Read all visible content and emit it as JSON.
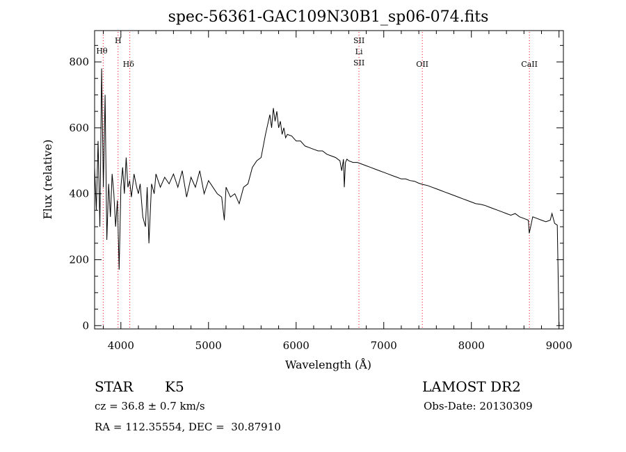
{
  "chart_data": {
    "type": "line",
    "title": "spec-56361-GAC109N30B1_sp06-074.fits",
    "xlabel": "Wavelength (Å)",
    "ylabel": "Flux (relative)",
    "xlim": [
      3700,
      9050
    ],
    "ylim": [
      -10,
      895
    ],
    "xticks": [
      4000,
      5000,
      6000,
      7000,
      8000,
      9000
    ],
    "yticks": [
      0,
      200,
      400,
      600,
      800
    ],
    "grid": false,
    "line_color": "#000000",
    "marker_color": "#ff0000",
    "lines": [
      {
        "labels": [
          "Hθ"
        ],
        "x": 3798,
        "color": "#ff0000"
      },
      {
        "labels": [
          "H"
        ],
        "x": 3968,
        "color": "#ff0000"
      },
      {
        "labels": [
          "Hδ"
        ],
        "x": 4102,
        "color": "#ff0000"
      },
      {
        "labels": [
          "SII",
          "Li",
          "SII"
        ],
        "x": 6717,
        "color": "#ff0000"
      },
      {
        "labels": [
          "OII"
        ],
        "x": 7440,
        "color": "#ff0000"
      },
      {
        "labels": [
          "CaII"
        ],
        "x": 8662,
        "color": "#ff0000"
      }
    ],
    "series": [
      {
        "x": [
          3700,
          3720,
          3740,
          3760,
          3780,
          3800,
          3820,
          3840,
          3860,
          3880,
          3900,
          3920,
          3940,
          3960,
          3980,
          4000,
          4020,
          4040,
          4060,
          4080,
          4100,
          4120,
          4150,
          4180,
          4200,
          4220,
          4250,
          4280,
          4300,
          4320,
          4350,
          4380,
          4400,
          4450,
          4500,
          4550,
          4600,
          4650,
          4700,
          4750,
          4800,
          4850,
          4900,
          4950,
          5000,
          5050,
          5100,
          5150,
          5180,
          5200,
          5250,
          5300,
          5350,
          5400,
          5450,
          5500,
          5550,
          5600,
          5650,
          5700,
          5720,
          5740,
          5760,
          5780,
          5800,
          5820,
          5840,
          5860,
          5880,
          5900,
          5950,
          6000,
          6050,
          6100,
          6150,
          6200,
          6250,
          6300,
          6350,
          6400,
          6450,
          6500,
          6520,
          6540,
          6550,
          6563,
          6580,
          6600,
          6650,
          6700,
          6750,
          6800,
          6850,
          6900,
          6950,
          7000,
          7050,
          7100,
          7150,
          7200,
          7250,
          7300,
          7350,
          7400,
          7450,
          7500,
          7550,
          7600,
          7650,
          7700,
          7750,
          7800,
          7850,
          7900,
          7950,
          8000,
          8050,
          8100,
          8150,
          8200,
          8250,
          8300,
          8350,
          8400,
          8450,
          8500,
          8550,
          8600,
          8650,
          8660,
          8700,
          8750,
          8800,
          8850,
          8900,
          8920,
          8950,
          8980,
          9000,
          9005
        ],
        "y": [
          480,
          350,
          560,
          300,
          780,
          420,
          700,
          260,
          430,
          330,
          460,
          400,
          300,
          380,
          170,
          420,
          480,
          400,
          510,
          420,
          440,
          390,
          460,
          420,
          400,
          430,
          330,
          300,
          420,
          250,
          430,
          400,
          460,
          420,
          450,
          430,
          460,
          420,
          470,
          390,
          450,
          420,
          470,
          400,
          440,
          420,
          400,
          390,
          320,
          420,
          390,
          400,
          370,
          420,
          430,
          480,
          500,
          510,
          580,
          640,
          600,
          660,
          620,
          650,
          600,
          620,
          580,
          600,
          570,
          580,
          575,
          560,
          560,
          545,
          540,
          535,
          530,
          530,
          520,
          515,
          510,
          500,
          470,
          505,
          420,
          495,
          505,
          500,
          495,
          495,
          490,
          485,
          480,
          475,
          470,
          465,
          460,
          455,
          450,
          445,
          445,
          440,
          438,
          432,
          428,
          425,
          420,
          415,
          410,
          405,
          400,
          395,
          390,
          385,
          380,
          375,
          370,
          368,
          365,
          360,
          355,
          350,
          345,
          340,
          335,
          340,
          330,
          325,
          320,
          280,
          330,
          325,
          320,
          315,
          320,
          340,
          310,
          305,
          0,
          0
        ]
      }
    ]
  },
  "info": {
    "object_type": "STAR",
    "subclass": "K5",
    "survey": "LAMOST DR2",
    "cz": "cz = 36.8 ± 0.7 km/s",
    "obs_date": "Obs-Date: 20130309",
    "coords": "RA = 112.35554, DEC =  30.87910"
  }
}
